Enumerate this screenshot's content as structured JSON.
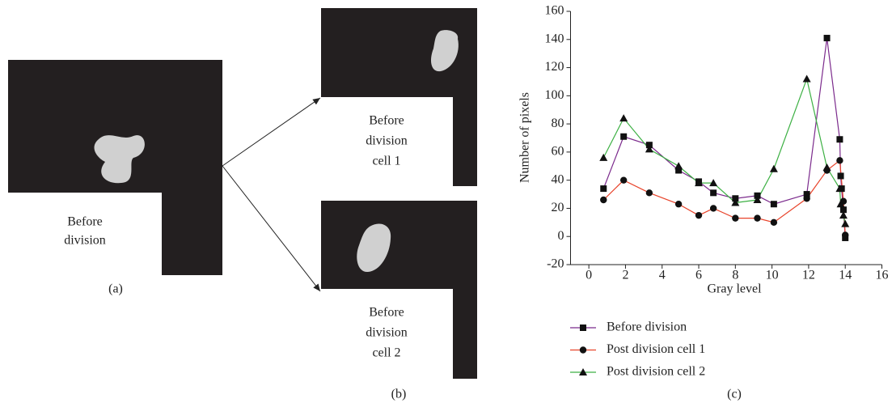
{
  "panels": {
    "a": {
      "box": [
        "Before",
        "division"
      ],
      "label": "(a)"
    },
    "b": {
      "top": [
        "Before",
        "division",
        "cell 1"
      ],
      "bottom": [
        "Before",
        "division",
        "cell 2"
      ],
      "label": "(b)"
    },
    "c": {
      "label": "(c)"
    }
  },
  "chart_data": {
    "type": "line",
    "x_label": "Gray level",
    "y_label": "Number of pixels",
    "xlim": [
      -1,
      16
    ],
    "ylim": [
      -20,
      160
    ],
    "xticks": [
      0,
      2,
      4,
      6,
      8,
      10,
      12,
      14,
      16
    ],
    "yticks": [
      -20,
      0,
      20,
      40,
      60,
      80,
      100,
      120,
      140,
      160
    ],
    "series": [
      {
        "name": "Before division",
        "color": "#7b2a8c",
        "marker": "square",
        "x": [
          0.8,
          1.9,
          3.3,
          4.9,
          6,
          6.8,
          8,
          9.2,
          10.1,
          11.9,
          13,
          13.7,
          13.75,
          13.8,
          13.9,
          14
        ],
        "values": [
          34,
          71,
          65,
          47,
          39,
          31,
          27,
          29,
          23,
          30,
          141,
          69,
          43,
          34,
          19,
          -1
        ]
      },
      {
        "name": "Post division cell 1",
        "color": "#e8432a",
        "marker": "circle",
        "x": [
          0.8,
          1.9,
          3.3,
          4.9,
          6,
          6.8,
          8,
          9.2,
          10.1,
          11.9,
          13,
          13.7,
          13.9,
          14
        ],
        "values": [
          26,
          40,
          31,
          23,
          15,
          20,
          13,
          13,
          10,
          27,
          47,
          54,
          25,
          1
        ]
      },
      {
        "name": "Post division cell 2",
        "color": "#3cb043",
        "marker": "triangle",
        "x": [
          0.8,
          1.9,
          3.3,
          4.9,
          6,
          6.8,
          8,
          9.2,
          10.1,
          11.9,
          13,
          13.7,
          13.75,
          13.9,
          14
        ],
        "values": [
          56,
          84,
          62,
          50,
          38,
          38,
          24,
          26,
          48,
          112,
          49,
          34,
          23,
          15,
          9
        ]
      }
    ]
  }
}
